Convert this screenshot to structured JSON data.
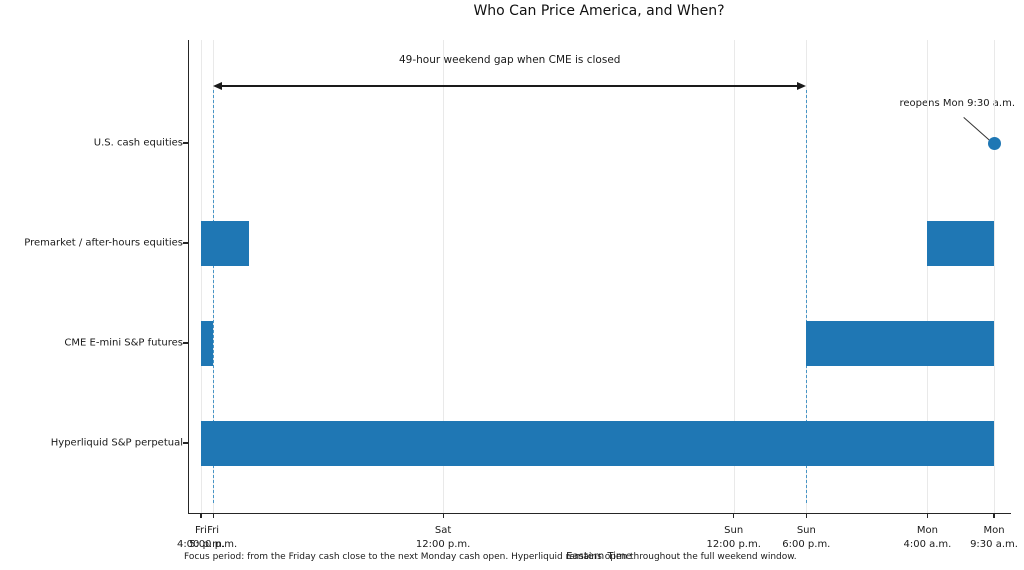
{
  "chart_data": {
    "type": "bar",
    "subtype": "horizontal-interval-timeline (Gantt-style market-hours chart)",
    "title": "Who Can Price America, and When?",
    "xlabel": "Eastern Time",
    "x_unit": "hours after Friday 4:00 p.m. ET",
    "grid": "faint vertical gridline at every x tick",
    "legend": "none",
    "x_ticks": [
      {
        "t": 0,
        "day": "Fri",
        "time": "4:00 p.m."
      },
      {
        "t": 1,
        "day": "Fri",
        "time": "5:00 p.m."
      },
      {
        "t": 20,
        "day": "Sat",
        "time": "12:00 p.m."
      },
      {
        "t": 44,
        "day": "Sun",
        "time": "12:00 p.m."
      },
      {
        "t": 50,
        "day": "Sun",
        "time": "6:00 p.m."
      },
      {
        "t": 60,
        "day": "Mon",
        "time": "4:00 a.m."
      },
      {
        "t": 65.5,
        "day": "Mon",
        "time": "9:30 a.m."
      }
    ],
    "rows": [
      {
        "label": "U.S. cash equities",
        "intervals": [],
        "marker_t": 65.5
      },
      {
        "label": "Premarket / after-hours equities",
        "intervals": [
          [
            0,
            4
          ],
          [
            60,
            65.5
          ]
        ],
        "marker_t": null
      },
      {
        "label": "CME E-mini S&P futures",
        "intervals": [
          [
            0,
            1
          ],
          [
            50,
            65.5
          ]
        ],
        "marker_t": null
      },
      {
        "label": "Hyperliquid S&P perpetual",
        "intervals": [
          [
            0,
            65.5
          ]
        ],
        "marker_t": null
      }
    ],
    "dashed_guides_t": [
      1,
      50
    ],
    "annotations": {
      "gap_label": "49-hour weekend gap when CME is closed",
      "gap_span_t": [
        1,
        50
      ],
      "reopen_label": "reopens Mon 9:30 a.m.",
      "reopen_marker_t": 65.5
    },
    "footnote": "Focus period: from the Friday cash close to the next Monday cash open. Hyperliquid remains open throughout the full weekend window.",
    "colors": {
      "bar": "#1f77b4",
      "marker": "#1f77b4",
      "dashed_guide": "#4795c6",
      "grid": "#e9e9e9",
      "axis": "#262626",
      "text": "#1a1a1a"
    }
  }
}
